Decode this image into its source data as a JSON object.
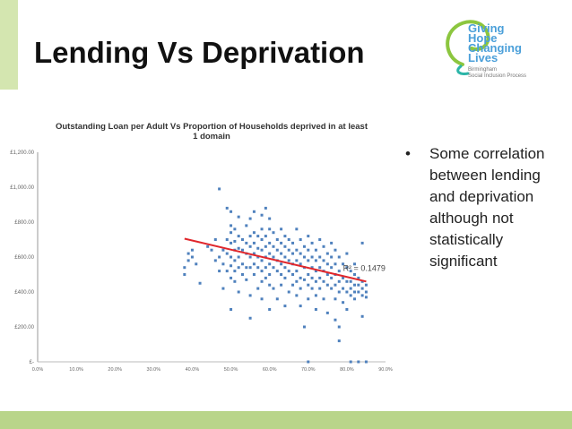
{
  "slide": {
    "title": "Lending Vs Deprivation",
    "bullet": "Some correlation between lending and deprivation although not statistically significant",
    "bullet_marker": "•"
  },
  "logo": {
    "lines": [
      "Giving",
      "Hope",
      "Changing",
      "Lives"
    ],
    "sub": [
      "Birmingham",
      "Social Inclusion Process"
    ],
    "colors": {
      "blue": "#4a9fd9",
      "green": "#8cc63f",
      "teal": "#2bb5a8"
    }
  },
  "colors": {
    "accent_bar": "#d4e6b0",
    "bottom_bar": "#b9d58a",
    "points": "#4f81bd",
    "trendline": "#e0262b"
  },
  "chart_data": {
    "type": "scatter",
    "title": "Outstanding Loan per Adult Vs Proportion of Households deprived in at least 1 domain",
    "x_ticks": [
      "0.0%",
      "10.0%",
      "20.0%",
      "30.0%",
      "40.0%",
      "50.0%",
      "60.0%",
      "70.0%",
      "80.0%",
      "90.0%"
    ],
    "y_ticks": [
      "£-",
      "£200.00",
      "£400.00",
      "£600.00",
      "£800.00",
      "£1,000.00",
      "£1,200.00"
    ],
    "xlim": [
      0,
      0.9
    ],
    "ylim": [
      0,
      1200
    ],
    "grid": false,
    "trendline": {
      "x": [
        0.38,
        0.85
      ],
      "y": [
        705,
        460
      ]
    },
    "r_squared_label": "R² = 0.1479",
    "points": [
      [
        0.38,
        540
      ],
      [
        0.38,
        500
      ],
      [
        0.39,
        620
      ],
      [
        0.39,
        580
      ],
      [
        0.4,
        600
      ],
      [
        0.4,
        640
      ],
      [
        0.41,
        560
      ],
      [
        0.42,
        450
      ],
      [
        0.44,
        660
      ],
      [
        0.45,
        640
      ],
      [
        0.46,
        700
      ],
      [
        0.46,
        580
      ],
      [
        0.47,
        990
      ],
      [
        0.47,
        520
      ],
      [
        0.47,
        600
      ],
      [
        0.48,
        640
      ],
      [
        0.48,
        560
      ],
      [
        0.48,
        420
      ],
      [
        0.49,
        880
      ],
      [
        0.49,
        700
      ],
      [
        0.49,
        620
      ],
      [
        0.49,
        520
      ],
      [
        0.5,
        860
      ],
      [
        0.5,
        780
      ],
      [
        0.5,
        740
      ],
      [
        0.5,
        680
      ],
      [
        0.5,
        600
      ],
      [
        0.5,
        550
      ],
      [
        0.5,
        480
      ],
      [
        0.5,
        300
      ],
      [
        0.51,
        760
      ],
      [
        0.51,
        690
      ],
      [
        0.51,
        640
      ],
      [
        0.51,
        580
      ],
      [
        0.51,
        520
      ],
      [
        0.51,
        460
      ],
      [
        0.52,
        830
      ],
      [
        0.52,
        720
      ],
      [
        0.52,
        650
      ],
      [
        0.52,
        600
      ],
      [
        0.52,
        540
      ],
      [
        0.52,
        400
      ],
      [
        0.53,
        700
      ],
      [
        0.53,
        640
      ],
      [
        0.53,
        560
      ],
      [
        0.53,
        500
      ],
      [
        0.54,
        780
      ],
      [
        0.54,
        680
      ],
      [
        0.54,
        620
      ],
      [
        0.54,
        540
      ],
      [
        0.54,
        470
      ],
      [
        0.55,
        820
      ],
      [
        0.55,
        720
      ],
      [
        0.55,
        660
      ],
      [
        0.55,
        600
      ],
      [
        0.55,
        540
      ],
      [
        0.55,
        380
      ],
      [
        0.55,
        250
      ],
      [
        0.56,
        860
      ],
      [
        0.56,
        740
      ],
      [
        0.56,
        680
      ],
      [
        0.56,
        620
      ],
      [
        0.56,
        560
      ],
      [
        0.56,
        500
      ],
      [
        0.57,
        720
      ],
      [
        0.57,
        650
      ],
      [
        0.57,
        600
      ],
      [
        0.57,
        540
      ],
      [
        0.57,
        420
      ],
      [
        0.58,
        840
      ],
      [
        0.58,
        760
      ],
      [
        0.58,
        700
      ],
      [
        0.58,
        640
      ],
      [
        0.58,
        580
      ],
      [
        0.58,
        520
      ],
      [
        0.58,
        460
      ],
      [
        0.58,
        360
      ],
      [
        0.59,
        880
      ],
      [
        0.59,
        720
      ],
      [
        0.59,
        660
      ],
      [
        0.59,
        600
      ],
      [
        0.59,
        540
      ],
      [
        0.59,
        480
      ],
      [
        0.6,
        820
      ],
      [
        0.6,
        760
      ],
      [
        0.6,
        680
      ],
      [
        0.6,
        620
      ],
      [
        0.6,
        560
      ],
      [
        0.6,
        500
      ],
      [
        0.6,
        440
      ],
      [
        0.6,
        300
      ],
      [
        0.61,
        740
      ],
      [
        0.61,
        660
      ],
      [
        0.61,
        600
      ],
      [
        0.61,
        540
      ],
      [
        0.61,
        420
      ],
      [
        0.62,
        700
      ],
      [
        0.62,
        640
      ],
      [
        0.62,
        580
      ],
      [
        0.62,
        520
      ],
      [
        0.62,
        360
      ],
      [
        0.63,
        760
      ],
      [
        0.63,
        680
      ],
      [
        0.63,
        620
      ],
      [
        0.63,
        560
      ],
      [
        0.63,
        500
      ],
      [
        0.63,
        440
      ],
      [
        0.64,
        720
      ],
      [
        0.64,
        660
      ],
      [
        0.64,
        600
      ],
      [
        0.64,
        540
      ],
      [
        0.64,
        480
      ],
      [
        0.64,
        320
      ],
      [
        0.65,
        700
      ],
      [
        0.65,
        640
      ],
      [
        0.65,
        580
      ],
      [
        0.65,
        520
      ],
      [
        0.65,
        400
      ],
      [
        0.66,
        680
      ],
      [
        0.66,
        620
      ],
      [
        0.66,
        560
      ],
      [
        0.66,
        500
      ],
      [
        0.66,
        440
      ],
      [
        0.67,
        760
      ],
      [
        0.67,
        640
      ],
      [
        0.67,
        580
      ],
      [
        0.67,
        520
      ],
      [
        0.67,
        460
      ],
      [
        0.67,
        380
      ],
      [
        0.68,
        700
      ],
      [
        0.68,
        620
      ],
      [
        0.68,
        560
      ],
      [
        0.68,
        480
      ],
      [
        0.68,
        420
      ],
      [
        0.68,
        320
      ],
      [
        0.69,
        660
      ],
      [
        0.69,
        600
      ],
      [
        0.69,
        540
      ],
      [
        0.69,
        470
      ],
      [
        0.69,
        200
      ],
      [
        0.7,
        720
      ],
      [
        0.7,
        640
      ],
      [
        0.7,
        580
      ],
      [
        0.7,
        500
      ],
      [
        0.7,
        440
      ],
      [
        0.7,
        360
      ],
      [
        0.7,
        0
      ],
      [
        0.71,
        680
      ],
      [
        0.71,
        600
      ],
      [
        0.71,
        540
      ],
      [
        0.71,
        480
      ],
      [
        0.71,
        420
      ],
      [
        0.72,
        640
      ],
      [
        0.72,
        580
      ],
      [
        0.72,
        520
      ],
      [
        0.72,
        460
      ],
      [
        0.72,
        380
      ],
      [
        0.72,
        300
      ],
      [
        0.73,
        700
      ],
      [
        0.73,
        600
      ],
      [
        0.73,
        540
      ],
      [
        0.73,
        480
      ],
      [
        0.73,
        420
      ],
      [
        0.74,
        660
      ],
      [
        0.74,
        580
      ],
      [
        0.74,
        520
      ],
      [
        0.74,
        460
      ],
      [
        0.74,
        360
      ],
      [
        0.75,
        620
      ],
      [
        0.75,
        560
      ],
      [
        0.75,
        500
      ],
      [
        0.75,
        440
      ],
      [
        0.75,
        280
      ],
      [
        0.76,
        680
      ],
      [
        0.76,
        600
      ],
      [
        0.76,
        540
      ],
      [
        0.76,
        480
      ],
      [
        0.76,
        420
      ],
      [
        0.77,
        640
      ],
      [
        0.77,
        560
      ],
      [
        0.77,
        500
      ],
      [
        0.77,
        440
      ],
      [
        0.77,
        360
      ],
      [
        0.77,
        240
      ],
      [
        0.78,
        600
      ],
      [
        0.78,
        520
      ],
      [
        0.78,
        460
      ],
      [
        0.78,
        400
      ],
      [
        0.78,
        200
      ],
      [
        0.78,
        120
      ],
      [
        0.79,
        560
      ],
      [
        0.79,
        480
      ],
      [
        0.79,
        420
      ],
      [
        0.79,
        340
      ],
      [
        0.8,
        620
      ],
      [
        0.8,
        540
      ],
      [
        0.8,
        460
      ],
      [
        0.8,
        400
      ],
      [
        0.8,
        300
      ],
      [
        0.81,
        520
      ],
      [
        0.81,
        460
      ],
      [
        0.81,
        420
      ],
      [
        0.81,
        380
      ],
      [
        0.81,
        0
      ],
      [
        0.82,
        560
      ],
      [
        0.82,
        500
      ],
      [
        0.82,
        440
      ],
      [
        0.82,
        400
      ],
      [
        0.82,
        360
      ],
      [
        0.83,
        480
      ],
      [
        0.83,
        440
      ],
      [
        0.83,
        400
      ],
      [
        0.83,
        0
      ],
      [
        0.84,
        680
      ],
      [
        0.84,
        460
      ],
      [
        0.84,
        420
      ],
      [
        0.84,
        380
      ],
      [
        0.84,
        260
      ],
      [
        0.85,
        440
      ],
      [
        0.85,
        400
      ],
      [
        0.85,
        370
      ],
      [
        0.85,
        0
      ]
    ]
  }
}
